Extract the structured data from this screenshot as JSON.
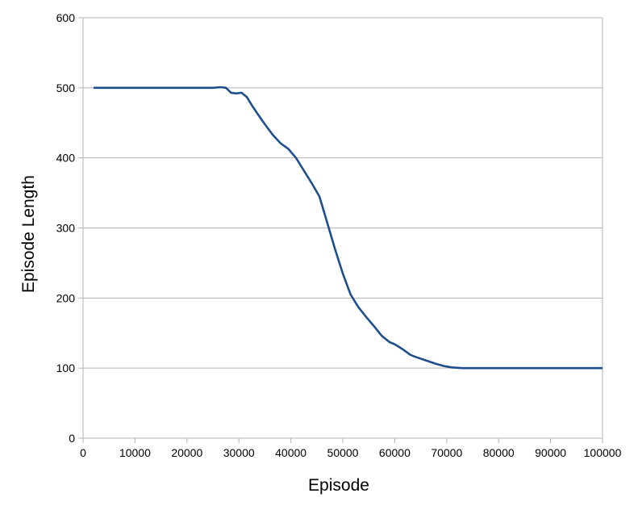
{
  "chart_data": {
    "type": "line",
    "title": "",
    "xlabel": "Episode",
    "ylabel": "Episode Length",
    "xlim": [
      0,
      100000
    ],
    "ylim": [
      0,
      600
    ],
    "xticks": [
      0,
      10000,
      20000,
      30000,
      40000,
      50000,
      60000,
      70000,
      80000,
      90000,
      100000
    ],
    "yticks": [
      0,
      100,
      200,
      300,
      400,
      500,
      600
    ],
    "xtick_labels": [
      "0",
      "10000",
      "20000",
      "30000",
      "40000",
      "50000",
      "60000",
      "70000",
      "80000",
      "90000",
      "100000"
    ],
    "ytick_labels": [
      "0",
      "100",
      "200",
      "300",
      "400",
      "500",
      "600"
    ],
    "grid": "horizontal",
    "legend": "none",
    "colors": {
      "line": "#1f4e8c",
      "grid": "#b3b3b3",
      "axis": "#b3b3b3"
    },
    "series": [
      {
        "x": [
          2000,
          10000,
          20000,
          25000,
          26500,
          27500,
          28500,
          29500,
          30500,
          31500,
          32500,
          33500,
          35000,
          36500,
          38000,
          39500,
          41000,
          42500,
          44000,
          45500,
          46500,
          47500,
          48500,
          50000,
          51500,
          53000,
          54500,
          56000,
          57500,
          59000,
          60000,
          61500,
          63000,
          64000,
          66000,
          68000,
          69500,
          71000,
          73000,
          80000,
          90000,
          100000
        ],
        "y": [
          500,
          500,
          500,
          500,
          501,
          500,
          493,
          492,
          493,
          487,
          475,
          464,
          448,
          433,
          421,
          413,
          400,
          382,
          364,
          345,
          320,
          295,
          270,
          235,
          205,
          187,
          173,
          160,
          146,
          137,
          134,
          127,
          119,
          116,
          111,
          106,
          103,
          101,
          100,
          100,
          100,
          100
        ]
      }
    ]
  }
}
